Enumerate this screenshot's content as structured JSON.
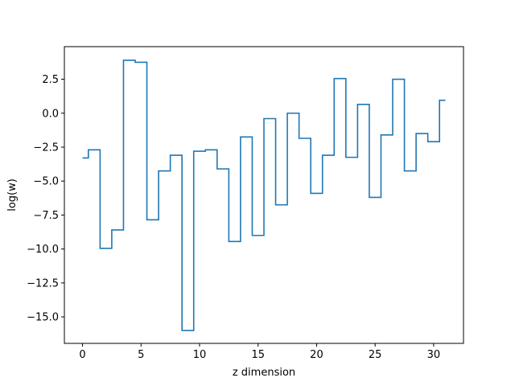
{
  "chart_data": {
    "type": "line",
    "drawstyle": "steps-mid",
    "title": "",
    "xlabel": "z dimension",
    "ylabel": "log(w)",
    "xlim": [
      -1.55,
      32.55
    ],
    "ylim": [
      -16.95,
      4.9
    ],
    "xticks": [
      0,
      5,
      10,
      15,
      20,
      25,
      30
    ],
    "xtick_labels": [
      "0",
      "5",
      "10",
      "15",
      "20",
      "25",
      "30"
    ],
    "yticks": [
      2.5,
      0.0,
      -2.5,
      -5.0,
      -7.5,
      -10.0,
      -12.5,
      -15.0
    ],
    "ytick_labels": [
      "2.5",
      "0.0",
      "−2.5",
      "−5.0",
      "−7.5",
      "−10.0",
      "−12.5",
      "−15.0"
    ],
    "grid": false,
    "color": "#1f77b4",
    "x": [
      0,
      1,
      2,
      3,
      4,
      5,
      6,
      7,
      8,
      9,
      10,
      11,
      12,
      13,
      14,
      15,
      16,
      17,
      18,
      19,
      20,
      21,
      22,
      23,
      24,
      25,
      26,
      27,
      28,
      29,
      30,
      31
    ],
    "y": [
      -3.3,
      -2.7,
      -9.95,
      -8.6,
      3.9,
      3.75,
      -7.85,
      -4.25,
      -3.1,
      -16.0,
      -2.8,
      -2.7,
      -4.1,
      -9.45,
      -1.75,
      -9.0,
      -0.4,
      -6.75,
      0.0,
      -1.85,
      -5.9,
      -3.1,
      2.55,
      -3.25,
      0.65,
      -6.2,
      -1.6,
      2.5,
      -4.25,
      -1.5,
      -2.1,
      0.95
    ]
  }
}
